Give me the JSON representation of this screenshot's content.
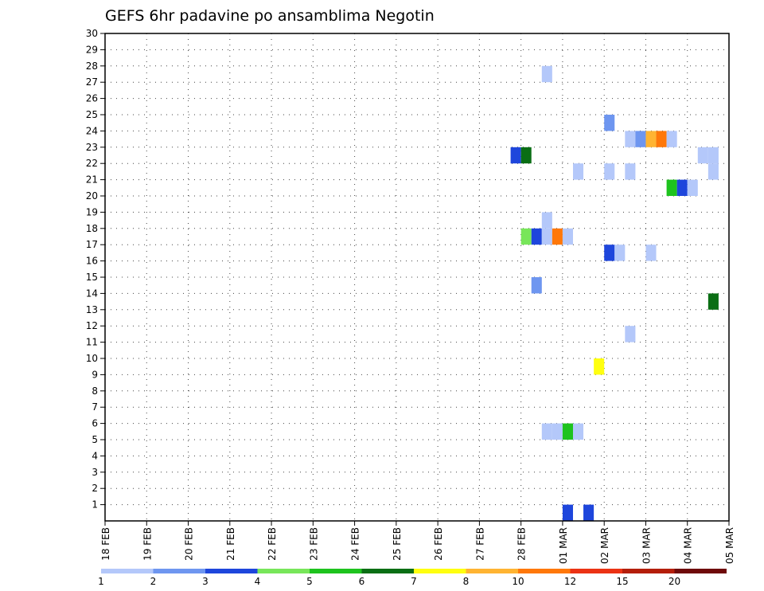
{
  "chart_data": {
    "type": "heatmap",
    "title": "GEFS 6hr padavine po ansamblima Negotin",
    "x_tick_labels": [
      "18 FEB",
      "19 FEB",
      "20 FEB",
      "21 FEB",
      "22 FEB",
      "23 FEB",
      "24 FEB",
      "25 FEB",
      "26 FEB",
      "27 FEB",
      "28 FEB",
      "01 MAR",
      "02 MAR",
      "03 MAR",
      "04 MAR",
      "05 MAR"
    ],
    "y_tick_labels": [
      "1",
      "2",
      "3",
      "4",
      "5",
      "6",
      "7",
      "8",
      "9",
      "10",
      "11",
      "12",
      "13",
      "14",
      "15",
      "16",
      "17",
      "18",
      "19",
      "20",
      "21",
      "22",
      "23",
      "24",
      "25",
      "26",
      "27",
      "28",
      "29",
      "30"
    ],
    "ylim": [
      0,
      30
    ],
    "steps_per_day": 4,
    "grid": true,
    "colorbar": {
      "levels": [
        1,
        2,
        3,
        4,
        5,
        6,
        7,
        8,
        10,
        12,
        15,
        20
      ],
      "labels": [
        "1",
        "2",
        "3",
        "4",
        "5",
        "6",
        "7",
        "8",
        "10",
        "12",
        "15",
        "20"
      ],
      "colors": [
        "#b4c8fa",
        "#6e96f0",
        "#1e46dc",
        "#78e65a",
        "#1ec31e",
        "#0a6e14",
        "#ffff0f",
        "#ffb432",
        "#ff780a",
        "#eb3214",
        "#b41e0a",
        "#6e0a0a"
      ]
    },
    "cells": [
      {
        "step": 42.5,
        "member": 27.5,
        "bin": 0
      },
      {
        "step": 48.5,
        "member": 24.5,
        "bin": 1
      },
      {
        "step": 50.5,
        "member": 23.5,
        "bin": 0
      },
      {
        "step": 51.5,
        "member": 23.5,
        "bin": 1
      },
      {
        "step": 52.5,
        "member": 23.5,
        "bin": 7
      },
      {
        "step": 53.5,
        "member": 23.5,
        "bin": 8
      },
      {
        "step": 54.5,
        "member": 23.5,
        "bin": 0
      },
      {
        "step": 39.5,
        "member": 22.5,
        "bin": 2
      },
      {
        "step": 40.5,
        "member": 22.5,
        "bin": 5
      },
      {
        "step": 57.5,
        "member": 22.5,
        "bin": 0
      },
      {
        "step": 58.5,
        "member": 22.5,
        "bin": 0
      },
      {
        "step": 45.5,
        "member": 21.5,
        "bin": 0
      },
      {
        "step": 48.5,
        "member": 21.5,
        "bin": 0
      },
      {
        "step": 50.5,
        "member": 21.5,
        "bin": 0
      },
      {
        "step": 58.5,
        "member": 21.5,
        "bin": 0
      },
      {
        "step": 54.5,
        "member": 20.5,
        "bin": 4
      },
      {
        "step": 55.5,
        "member": 20.5,
        "bin": 2
      },
      {
        "step": 56.5,
        "member": 20.5,
        "bin": 0
      },
      {
        "step": 42.5,
        "member": 18.5,
        "bin": 0
      },
      {
        "step": 40.5,
        "member": 17.5,
        "bin": 3
      },
      {
        "step": 41.5,
        "member": 17.5,
        "bin": 2
      },
      {
        "step": 42.5,
        "member": 17.5,
        "bin": 0
      },
      {
        "step": 43.5,
        "member": 17.5,
        "bin": 8
      },
      {
        "step": 44.5,
        "member": 17.5,
        "bin": 0
      },
      {
        "step": 48.5,
        "member": 16.5,
        "bin": 2
      },
      {
        "step": 49.5,
        "member": 16.5,
        "bin": 0
      },
      {
        "step": 52.5,
        "member": 16.5,
        "bin": 0
      },
      {
        "step": 41.5,
        "member": 14.5,
        "bin": 1
      },
      {
        "step": 58.5,
        "member": 13.5,
        "bin": 5
      },
      {
        "step": 50.5,
        "member": 11.5,
        "bin": 0
      },
      {
        "step": 47.5,
        "member": 9.5,
        "bin": 6
      },
      {
        "step": 42.5,
        "member": 5.5,
        "bin": 0
      },
      {
        "step": 43.5,
        "member": 5.5,
        "bin": 0
      },
      {
        "step": 44.5,
        "member": 5.5,
        "bin": 4
      },
      {
        "step": 45.5,
        "member": 5.5,
        "bin": 0
      },
      {
        "step": 44.5,
        "member": 0.5,
        "bin": 2
      },
      {
        "step": 46.5,
        "member": 0.5,
        "bin": 2
      }
    ]
  }
}
